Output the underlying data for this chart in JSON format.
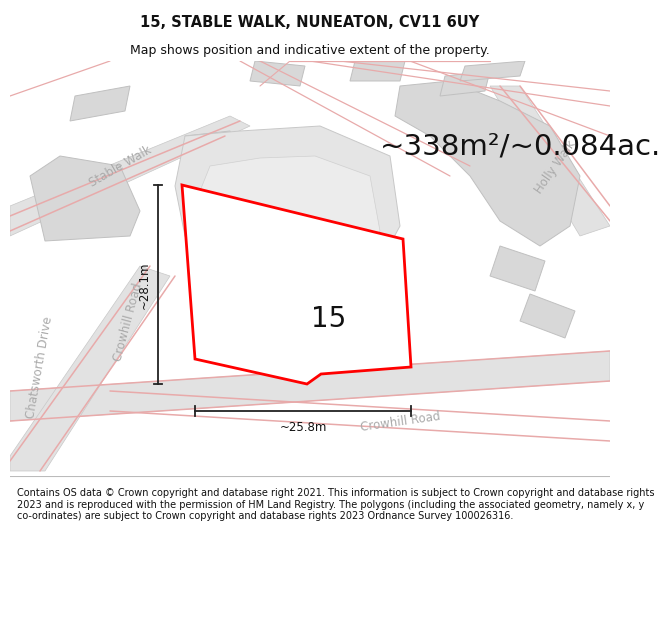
{
  "title": "15, STABLE WALK, NUNEATON, CV11 6UY",
  "subtitle": "Map shows position and indicative extent of the property.",
  "area_text": "~338m²/~0.084ac.",
  "property_number": "15",
  "dim_width": "~25.8m",
  "dim_height": "~28.1m",
  "footer": "Contains OS data © Crown copyright and database right 2021. This information is subject to Crown copyright and database rights 2023 and is reproduced with the permission of HM Land Registry. The polygons (including the associated geometry, namely x, y co-ordinates) are subject to Crown copyright and database rights 2023 Ordnance Survey 100026316.",
  "map_bg": "#f7f7f7",
  "road_fill": "#e2e2e2",
  "road_edge": "#c8c8c8",
  "pink_color": "#e8aaaa",
  "property_fill": "#ffffff",
  "property_stroke": "#ff0000",
  "building_fill": "#d8d8d8",
  "building_edge": "#c0c0c0",
  "block_fill": "#e0e0e0",
  "block_edge": "#cccccc",
  "dim_color": "#222222",
  "road_label_color": "#aaaaaa",
  "title_fontsize": 10.5,
  "subtitle_fontsize": 9,
  "area_fontsize": 21,
  "number_fontsize": 20,
  "footer_fontsize": 7.0
}
